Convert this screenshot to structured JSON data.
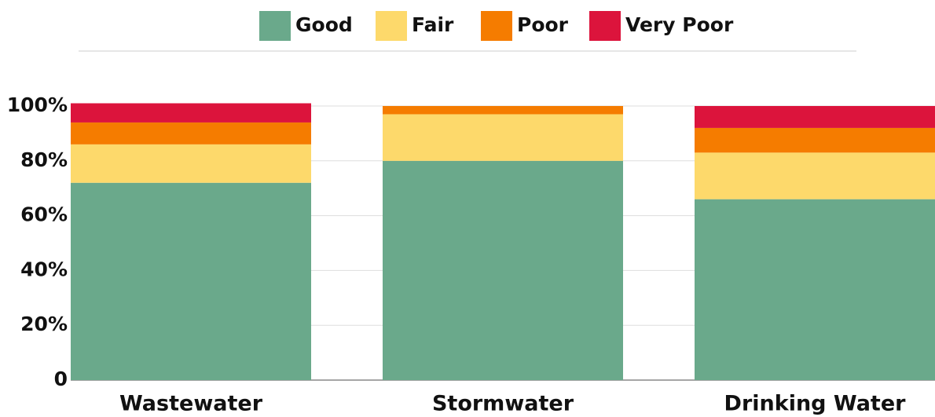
{
  "chart_data": {
    "type": "stacked_bar",
    "categories": [
      "Wastewater",
      "Stormwater",
      "Drinking Water"
    ],
    "series": [
      {
        "name": "Good",
        "color": "#6aa98b",
        "values": [
          72,
          80,
          66
        ]
      },
      {
        "name": "Fair",
        "color": "#fdd96b",
        "values": [
          14,
          17,
          17
        ]
      },
      {
        "name": "Poor",
        "color": "#f57c00",
        "values": [
          8,
          3,
          9
        ]
      },
      {
        "name": "Very Poor",
        "color": "#dc143c",
        "values": [
          7,
          0,
          8
        ]
      }
    ],
    "ylim": [
      0,
      100
    ],
    "yticks": [
      0,
      {
        "value": 20,
        "label": "20%"
      },
      {
        "value": 40,
        "label": "40%"
      },
      {
        "value": 60,
        "label": "60%"
      },
      {
        "value": 80,
        "label": "80%"
      },
      {
        "value": 100,
        "label": "100%"
      }
    ],
    "grid": true,
    "legend": "top"
  }
}
